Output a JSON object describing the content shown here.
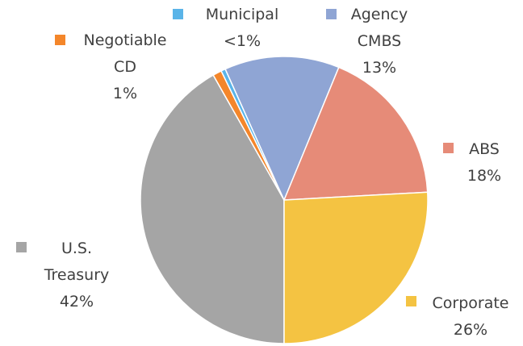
{
  "chart_data": {
    "type": "pie",
    "categories": [
      "U.S. Treasury",
      "Negotiable CD",
      "Municipal",
      "Agency CMBS",
      "ABS",
      "Corporate"
    ],
    "values": [
      42,
      1,
      0.5,
      13,
      18,
      26
    ],
    "value_labels": [
      "42%",
      "1%",
      "<1%",
      "13%",
      "18%",
      "26%"
    ],
    "colors": [
      "#a5a5a5",
      "#f4862a",
      "#5ab4e8",
      "#8fa5d4",
      "#e68b78",
      "#f4c342"
    ]
  }
}
